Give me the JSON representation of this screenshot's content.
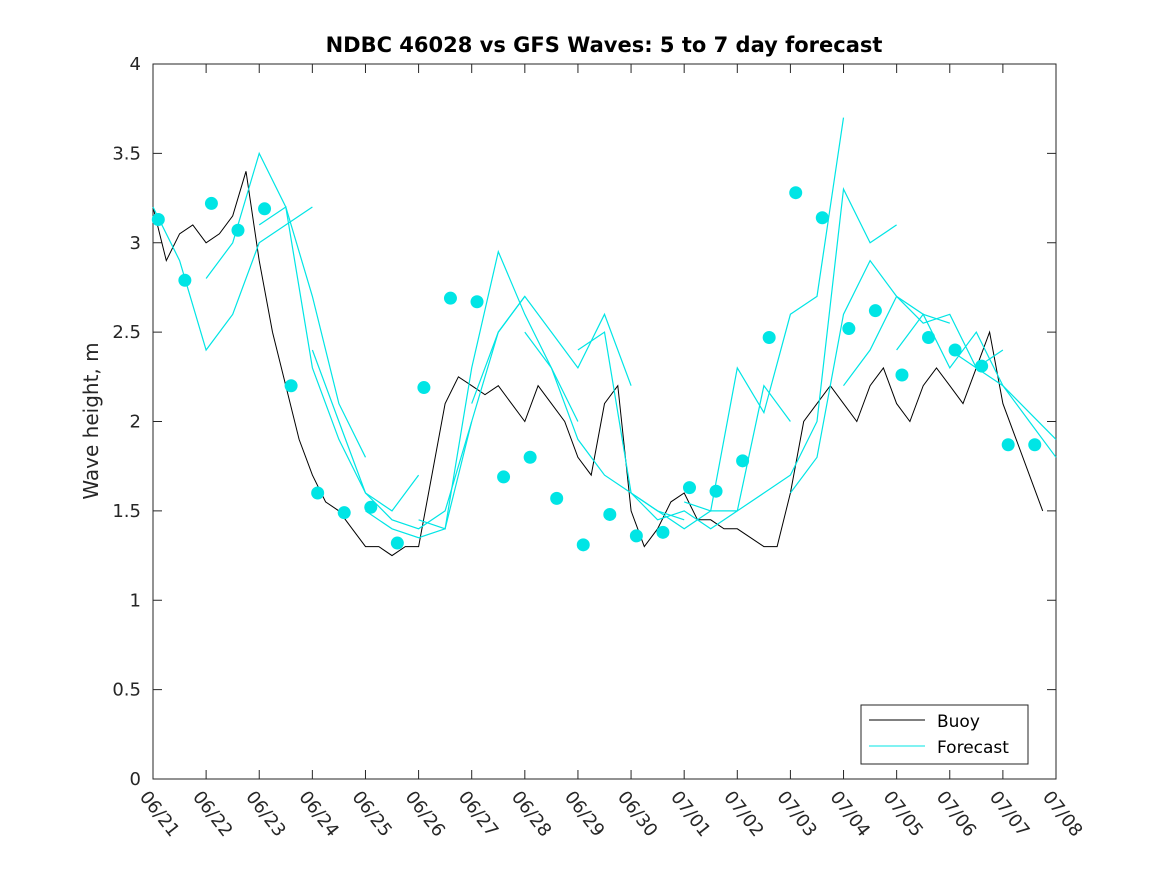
{
  "chart_data": {
    "type": "line",
    "title": "NDBC 46028 vs GFS Waves: 5 to 7 day forecast",
    "xlabel": "",
    "ylabel": "Wave height, m",
    "x_ticks": [
      "06/21",
      "06/22",
      "06/23",
      "06/24",
      "06/25",
      "06/26",
      "06/27",
      "06/28",
      "06/29",
      "06/30",
      "07/01",
      "07/02",
      "07/03",
      "07/04",
      "07/05",
      "07/06",
      "07/07",
      "07/08"
    ],
    "y_ticks": [
      "0",
      "0.5",
      "1",
      "1.5",
      "2",
      "2.5",
      "3",
      "3.5",
      "4"
    ],
    "xlim_days": [
      0,
      17
    ],
    "ylim": [
      0,
      4
    ],
    "grid": false,
    "legend_position": "bottom-right",
    "legend": [
      {
        "label": "Buoy",
        "color": "#000000"
      },
      {
        "label": "Forecast",
        "color": "#00e5e5"
      }
    ],
    "colors": {
      "buoy": "#000000",
      "forecast": "#00e5e5",
      "marker": "#00e5e5"
    },
    "buoy_series": {
      "name": "Buoy",
      "x_days": [
        0,
        0.25,
        0.5,
        0.75,
        1.0,
        1.25,
        1.5,
        1.75,
        2.0,
        2.25,
        2.5,
        2.75,
        3.0,
        3.25,
        3.5,
        3.75,
        4.0,
        4.25,
        4.5,
        4.75,
        5.0,
        5.25,
        5.5,
        5.75,
        6.0,
        6.25,
        6.5,
        6.75,
        7.0,
        7.25,
        7.5,
        7.75,
        8.0,
        8.25,
        8.5,
        8.75,
        9.0,
        9.25,
        9.5,
        9.75,
        10.0,
        10.25,
        10.5,
        10.75,
        11.0,
        11.25,
        11.5,
        11.75,
        12.0,
        12.25,
        12.5,
        12.75,
        13.0,
        13.25,
        13.5,
        13.75,
        14.0,
        14.25,
        14.5,
        14.75,
        15.0,
        15.25,
        15.5,
        15.75,
        16.0,
        16.25,
        16.5,
        16.75
      ],
      "y": [
        3.2,
        2.9,
        3.05,
        3.1,
        3.0,
        3.05,
        3.15,
        3.4,
        2.9,
        2.5,
        2.2,
        1.9,
        1.7,
        1.55,
        1.5,
        1.4,
        1.3,
        1.3,
        1.25,
        1.3,
        1.3,
        1.7,
        2.1,
        2.25,
        2.2,
        2.15,
        2.2,
        2.1,
        2.0,
        2.2,
        2.1,
        2.0,
        1.8,
        1.7,
        2.1,
        2.2,
        1.5,
        1.3,
        1.4,
        1.55,
        1.6,
        1.45,
        1.45,
        1.4,
        1.4,
        1.35,
        1.3,
        1.3,
        1.6,
        2.0,
        2.1,
        2.2,
        2.1,
        2.0,
        2.2,
        2.3,
        2.1,
        2.0,
        2.2,
        2.3,
        2.2,
        2.1,
        2.3,
        2.5,
        2.1,
        1.9,
        1.7,
        1.5
      ]
    },
    "forecast_series": [
      {
        "x_days": [
          0,
          0.5,
          1.0,
          1.5,
          2.0,
          2.5,
          3.0
        ],
        "y": [
          3.2,
          2.9,
          2.4,
          2.6,
          3.0,
          3.1,
          3.2
        ]
      },
      {
        "x_days": [
          1.0,
          1.5,
          2.0,
          2.5,
          3.0,
          3.5,
          4.0
        ],
        "y": [
          2.8,
          3.0,
          3.5,
          3.2,
          2.7,
          2.1,
          1.8
        ]
      },
      {
        "x_days": [
          2.0,
          2.5,
          3.0,
          3.5,
          4.0,
          4.5,
          5.0
        ],
        "y": [
          3.1,
          3.2,
          2.3,
          1.9,
          1.6,
          1.5,
          1.7
        ]
      },
      {
        "x_days": [
          3.0,
          3.5,
          4.0,
          4.5,
          5.0,
          5.5,
          6.0
        ],
        "y": [
          2.4,
          2.0,
          1.6,
          1.45,
          1.4,
          1.5,
          2.0
        ]
      },
      {
        "x_days": [
          4.0,
          4.5,
          5.0,
          5.5,
          6.0,
          6.5,
          7.0
        ],
        "y": [
          1.5,
          1.4,
          1.35,
          1.4,
          2.0,
          2.5,
          2.7
        ]
      },
      {
        "x_days": [
          5.0,
          5.5,
          6.0,
          6.5,
          7.0,
          7.5,
          8.0
        ],
        "y": [
          1.45,
          1.4,
          2.3,
          2.95,
          2.6,
          2.3,
          2.0
        ]
      },
      {
        "x_days": [
          6.0,
          6.5,
          7.0,
          7.5,
          8.0,
          8.5,
          9.0
        ],
        "y": [
          2.1,
          2.5,
          2.7,
          2.5,
          2.3,
          2.6,
          2.2
        ]
      },
      {
        "x_days": [
          7.0,
          7.5,
          8.0,
          8.5,
          9.0,
          9.5,
          10.0
        ],
        "y": [
          2.5,
          2.3,
          1.9,
          1.7,
          1.6,
          1.5,
          1.45
        ]
      },
      {
        "x_days": [
          8.0,
          8.5,
          9.0,
          9.5,
          10.0,
          10.5,
          11.0
        ],
        "y": [
          2.4,
          2.5,
          1.6,
          1.5,
          1.4,
          1.5,
          1.5
        ]
      },
      {
        "x_days": [
          9.0,
          9.5,
          10.0,
          10.5,
          11.0,
          11.5,
          12.0
        ],
        "y": [
          1.6,
          1.45,
          1.5,
          1.4,
          1.5,
          2.2,
          2.0
        ]
      },
      {
        "x_days": [
          10.0,
          10.5,
          11.0,
          11.5,
          12.0,
          12.5,
          13.0
        ],
        "y": [
          1.55,
          1.5,
          2.3,
          2.05,
          2.6,
          2.7,
          3.7
        ]
      },
      {
        "x_days": [
          11.0,
          11.5,
          12.0,
          12.5,
          13.0,
          13.5,
          14.0
        ],
        "y": [
          1.5,
          1.6,
          1.7,
          2.0,
          3.3,
          3.0,
          3.1
        ]
      },
      {
        "x_days": [
          12.0,
          12.5,
          13.0,
          13.5,
          14.0,
          14.5,
          15.0
        ],
        "y": [
          1.6,
          1.8,
          2.6,
          2.9,
          2.7,
          2.6,
          2.55
        ]
      },
      {
        "x_days": [
          13.0,
          13.5,
          14.0,
          14.5,
          15.0,
          15.5,
          16.0
        ],
        "y": [
          2.2,
          2.4,
          2.7,
          2.55,
          2.6,
          2.3,
          2.4
        ]
      },
      {
        "x_days": [
          14.0,
          14.5,
          15.0,
          15.5,
          16.0,
          16.5,
          17.0
        ],
        "y": [
          2.4,
          2.6,
          2.3,
          2.5,
          2.2,
          2.0,
          1.8
        ]
      },
      {
        "x_days": [
          15.0,
          15.5,
          16.0,
          16.5,
          17.0
        ],
        "y": [
          2.4,
          2.3,
          2.2,
          2.05,
          1.9
        ]
      }
    ],
    "forecast_markers": {
      "x_days": [
        0.1,
        0.6,
        1.1,
        1.6,
        2.1,
        2.6,
        3.1,
        3.6,
        4.1,
        4.6,
        5.1,
        5.6,
        6.1,
        6.6,
        7.1,
        7.6,
        8.1,
        8.6,
        9.1,
        9.6,
        10.1,
        10.6,
        11.1,
        11.6,
        12.1,
        12.6,
        13.1,
        13.6,
        14.1,
        14.6,
        15.1,
        15.6,
        16.1,
        16.6
      ],
      "y": [
        3.13,
        2.79,
        3.22,
        3.07,
        3.19,
        2.2,
        1.6,
        1.49,
        1.52,
        1.32,
        2.19,
        2.69,
        2.67,
        1.69,
        1.8,
        1.57,
        1.31,
        1.48,
        1.36,
        1.38,
        1.63,
        1.61,
        1.78,
        2.47,
        3.28,
        3.14,
        2.52,
        2.62,
        2.26,
        2.47,
        2.4,
        2.31,
        1.87,
        1.87
      ]
    }
  }
}
